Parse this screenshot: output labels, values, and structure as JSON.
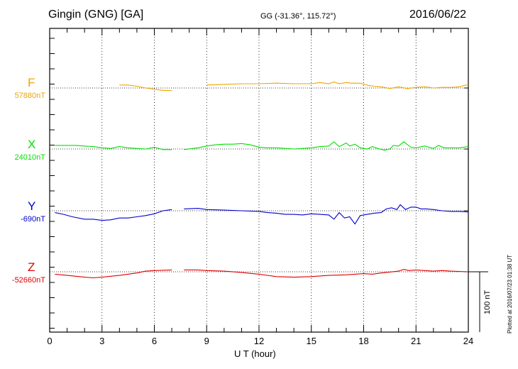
{
  "header": {
    "station": "Gingin (GNG)  [GA]",
    "coords": "GG (-31.36°, 115.72°)",
    "date": "2016/06/22"
  },
  "chart_data": {
    "type": "line",
    "title": "Gingin (GNG)  [GA]",
    "xlabel": "U T (hour)",
    "xlim": [
      0,
      24
    ],
    "xticks": [
      "0",
      "3",
      "6",
      "9",
      "12",
      "15",
      "18",
      "21",
      "24"
    ],
    "scale_bar": "100 nT",
    "grid": true,
    "series": [
      {
        "name": "F",
        "color": "#f0a400",
        "baseline": "57880nT",
        "segments": [
          [
            [
              4.0,
              -5
            ],
            [
              4.5,
              -5
            ],
            [
              5.0,
              -3
            ],
            [
              5.5,
              0
            ],
            [
              6.0,
              2
            ],
            [
              6.5,
              4
            ],
            [
              7.0,
              4
            ]
          ],
          [
            [
              9.0,
              -5
            ],
            [
              10.0,
              -6
            ],
            [
              11.0,
              -7
            ],
            [
              12.0,
              -7
            ],
            [
              13.0,
              -8
            ],
            [
              14.0,
              -7
            ],
            [
              15.0,
              -7
            ],
            [
              15.5,
              -9
            ],
            [
              16.0,
              -7
            ],
            [
              16.3,
              -10
            ],
            [
              16.6,
              -7
            ],
            [
              17.0,
              -9
            ],
            [
              17.3,
              -8
            ],
            [
              17.8,
              -8
            ],
            [
              18.3,
              -4
            ],
            [
              18.6,
              -3
            ],
            [
              19.0,
              -2
            ],
            [
              19.5,
              1
            ],
            [
              20.0,
              -2
            ],
            [
              20.5,
              1
            ],
            [
              21.0,
              -1
            ],
            [
              21.5,
              -2
            ],
            [
              22.0,
              0
            ],
            [
              22.5,
              -1
            ],
            [
              23.0,
              -1
            ],
            [
              23.5,
              -2
            ],
            [
              24.0,
              -6
            ]
          ]
        ]
      },
      {
        "name": "X",
        "color": "#00e000",
        "baseline": "24010nT",
        "segments": [
          [
            [
              0.3,
              -6
            ],
            [
              1.0,
              -6
            ],
            [
              1.5,
              -6
            ],
            [
              2.0,
              -5
            ],
            [
              2.5,
              -4
            ],
            [
              3.0,
              -2
            ],
            [
              3.5,
              -1
            ],
            [
              4.0,
              -4
            ],
            [
              4.5,
              -2
            ],
            [
              5.0,
              -1
            ],
            [
              5.5,
              0
            ],
            [
              6.0,
              -3
            ],
            [
              6.5,
              1
            ],
            [
              7.0,
              1
            ]
          ],
          [
            [
              7.7,
              1
            ],
            [
              8.5,
              -2
            ],
            [
              9.0,
              -5
            ],
            [
              9.5,
              -7
            ],
            [
              10.0,
              -8
            ],
            [
              10.5,
              -8
            ],
            [
              11.0,
              -9
            ],
            [
              11.5,
              -7
            ],
            [
              12.0,
              -3
            ],
            [
              12.5,
              -2
            ],
            [
              13.0,
              -2
            ],
            [
              13.5,
              -1
            ],
            [
              14.0,
              0
            ],
            [
              14.5,
              -1
            ],
            [
              15.0,
              -2
            ],
            [
              15.5,
              -4
            ],
            [
              16.0,
              -5
            ],
            [
              16.3,
              -12
            ],
            [
              16.6,
              -4
            ],
            [
              17.0,
              -10
            ],
            [
              17.2,
              -5
            ],
            [
              17.5,
              -8
            ],
            [
              17.8,
              -2
            ],
            [
              18.2,
              0
            ],
            [
              18.5,
              -4
            ],
            [
              18.8,
              -1
            ],
            [
              19.2,
              2
            ],
            [
              19.5,
              0
            ],
            [
              19.7,
              -6
            ],
            [
              20.0,
              -5
            ],
            [
              20.3,
              -12
            ],
            [
              20.7,
              -3
            ],
            [
              21.0,
              -2
            ],
            [
              21.5,
              -5
            ],
            [
              22.0,
              -1
            ],
            [
              22.3,
              -6
            ],
            [
              22.6,
              -2
            ],
            [
              23.0,
              -2
            ],
            [
              23.5,
              -2
            ],
            [
              24.0,
              -4
            ]
          ]
        ]
      },
      {
        "name": "Y",
        "color": "#0000d0",
        "baseline": "-690nT",
        "segments": [
          [
            [
              0.3,
              3
            ],
            [
              0.8,
              6
            ],
            [
              1.3,
              10
            ],
            [
              2.0,
              14
            ],
            [
              2.5,
              14
            ],
            [
              3.0,
              16
            ],
            [
              3.5,
              15
            ],
            [
              4.0,
              12
            ],
            [
              4.5,
              12
            ],
            [
              5.0,
              10
            ],
            [
              5.5,
              8
            ],
            [
              6.0,
              5
            ],
            [
              6.5,
              0
            ],
            [
              7.0,
              -2
            ]
          ],
          [
            [
              7.7,
              -3
            ],
            [
              8.5,
              -4
            ],
            [
              9.0,
              -2
            ],
            [
              10.0,
              -1
            ],
            [
              11.0,
              0
            ],
            [
              12.0,
              1
            ],
            [
              12.5,
              3
            ],
            [
              13.0,
              4
            ],
            [
              13.5,
              6
            ],
            [
              14.0,
              6
            ],
            [
              14.5,
              7
            ],
            [
              15.0,
              5
            ],
            [
              15.5,
              6
            ],
            [
              16.0,
              7
            ],
            [
              16.3,
              14
            ],
            [
              16.6,
              3
            ],
            [
              16.9,
              12
            ],
            [
              17.2,
              10
            ],
            [
              17.5,
              22
            ],
            [
              17.8,
              8
            ],
            [
              18.2,
              6
            ],
            [
              18.6,
              4
            ],
            [
              19.0,
              3
            ],
            [
              19.3,
              -3
            ],
            [
              19.6,
              -5
            ],
            [
              19.9,
              -2
            ],
            [
              20.1,
              -10
            ],
            [
              20.4,
              -2
            ],
            [
              20.7,
              -6
            ],
            [
              21.0,
              -6
            ],
            [
              21.3,
              -3
            ],
            [
              21.6,
              -3
            ],
            [
              22.0,
              -2
            ],
            [
              22.5,
              0
            ],
            [
              23.0,
              1
            ],
            [
              23.5,
              1
            ],
            [
              24.0,
              2
            ]
          ]
        ]
      },
      {
        "name": "Z",
        "color": "#e00000",
        "baseline": "-52660nT",
        "segments": [
          [
            [
              0.3,
              4
            ],
            [
              1.0,
              6
            ],
            [
              2.0,
              9
            ],
            [
              2.5,
              10
            ],
            [
              3.0,
              9
            ],
            [
              4.0,
              6
            ],
            [
              5.0,
              2
            ],
            [
              5.5,
              -1
            ],
            [
              6.0,
              -2
            ],
            [
              7.0,
              -3
            ]
          ],
          [
            [
              7.7,
              -3
            ],
            [
              8.5,
              -3
            ],
            [
              9.0,
              -2
            ],
            [
              10.0,
              -1
            ],
            [
              11.0,
              1
            ],
            [
              12.0,
              4
            ],
            [
              13.0,
              8
            ],
            [
              14.0,
              9
            ],
            [
              15.0,
              8
            ],
            [
              16.0,
              6
            ],
            [
              17.0,
              5
            ],
            [
              17.5,
              4
            ],
            [
              18.0,
              3
            ],
            [
              18.5,
              4
            ],
            [
              19.0,
              2
            ],
            [
              20.0,
              -1
            ],
            [
              20.3,
              -4
            ],
            [
              20.6,
              -2
            ],
            [
              21.0,
              -3
            ],
            [
              21.5,
              -2
            ],
            [
              22.0,
              -1
            ],
            [
              22.5,
              -2
            ],
            [
              23.0,
              -1
            ],
            [
              24.0,
              0
            ]
          ]
        ]
      }
    ]
  },
  "footer": {
    "plotted": "Plotted at 2016/07/23 01:38 UT"
  }
}
